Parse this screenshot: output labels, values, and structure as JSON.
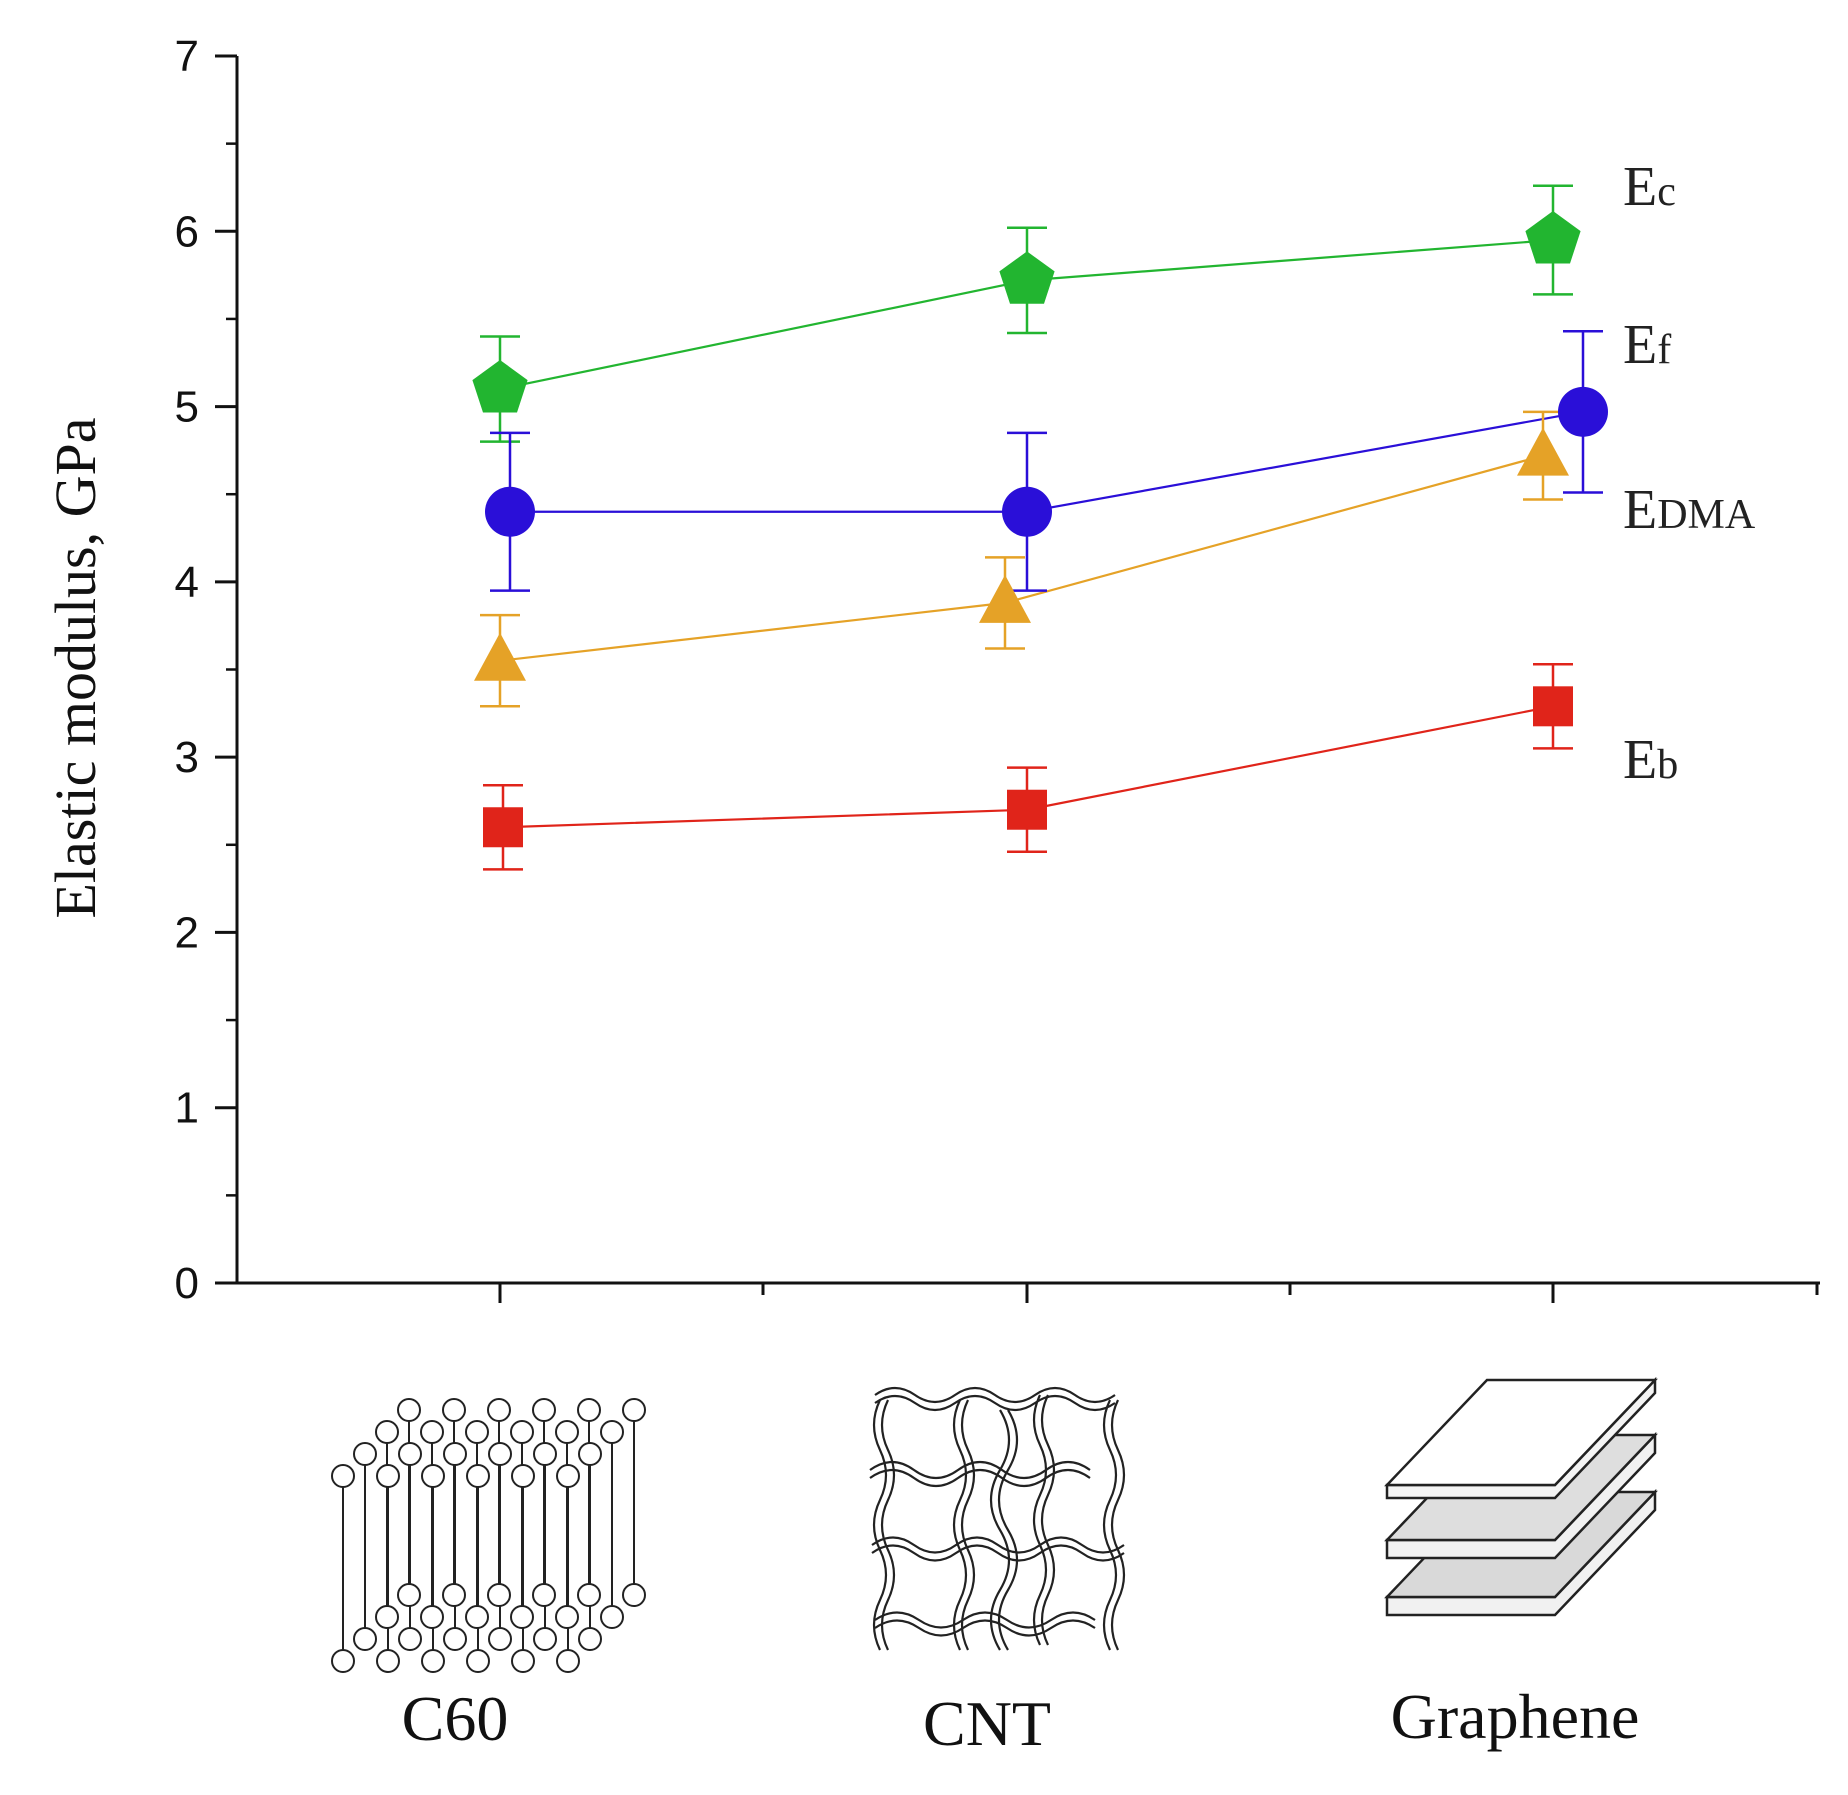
{
  "chart_data": {
    "type": "line",
    "title": "",
    "xlabel": "",
    "ylabel": "Elastic modulus, GPa",
    "ylim": [
      0,
      7
    ],
    "yticks": [
      "0",
      "1",
      "2",
      "3",
      "4",
      "5",
      "6",
      "7"
    ],
    "categories": [
      "C60",
      "CNT",
      "Graphene"
    ],
    "grid": false,
    "series": [
      {
        "id": "Ec",
        "name": "Ec",
        "label_main": "E",
        "label_sub": "c",
        "marker": "pentagon",
        "color": "#22b530",
        "values": [
          5.1,
          5.72,
          5.95
        ],
        "errors": [
          0.3,
          0.3,
          0.31
        ]
      },
      {
        "id": "Ef",
        "name": "Ef",
        "label_main": "E",
        "label_sub": "f",
        "marker": "circle",
        "color": "#2a0fd8",
        "values": [
          4.4,
          4.4,
          4.97
        ],
        "errors": [
          0.45,
          0.45,
          0.46
        ]
      },
      {
        "id": "EDMA",
        "name": "EDMA",
        "label_main": "E",
        "label_sub": "DMA",
        "marker": "triangle",
        "color": "#e5a227",
        "values": [
          3.55,
          3.88,
          4.72
        ],
        "errors": [
          0.26,
          0.26,
          0.25
        ]
      },
      {
        "id": "Eb",
        "name": "Eb",
        "label_main": "E",
        "label_sub": "b",
        "marker": "square",
        "color": "#e0241a",
        "values": [
          2.6,
          2.7,
          3.29
        ],
        "errors": [
          0.24,
          0.24,
          0.24
        ]
      }
    ]
  }
}
